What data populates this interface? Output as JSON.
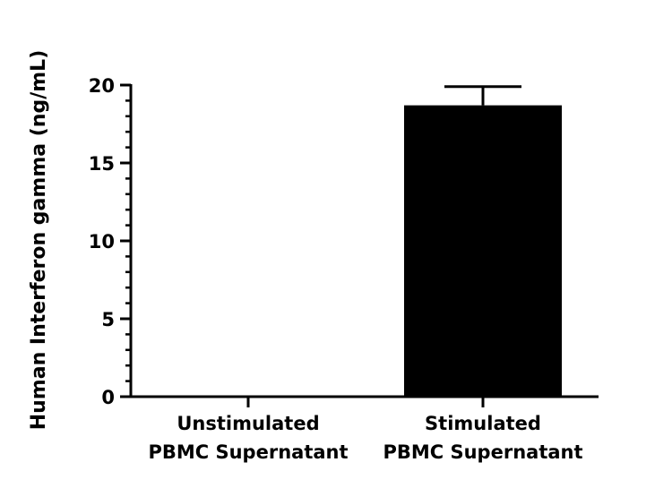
{
  "chart_data": {
    "type": "bar",
    "title": "",
    "xlabel": "",
    "ylabel": "Human Interferon gamma (ng/mL)",
    "categories": [
      [
        "Unstimulated",
        "PBMC Supernatant"
      ],
      [
        "Stimulated",
        "PBMC Supernatant"
      ]
    ],
    "values": [
      0,
      18.7
    ],
    "error_upper": [
      0,
      1.2
    ],
    "ylim": [
      0,
      20
    ],
    "yticks": [
      0,
      5,
      10,
      15,
      20
    ],
    "ytick_labels": [
      "0",
      "5",
      "10",
      "15",
      "20"
    ],
    "minor_ytick_step": 1,
    "grid": false,
    "legend": "none",
    "bar_color": "#000000"
  }
}
